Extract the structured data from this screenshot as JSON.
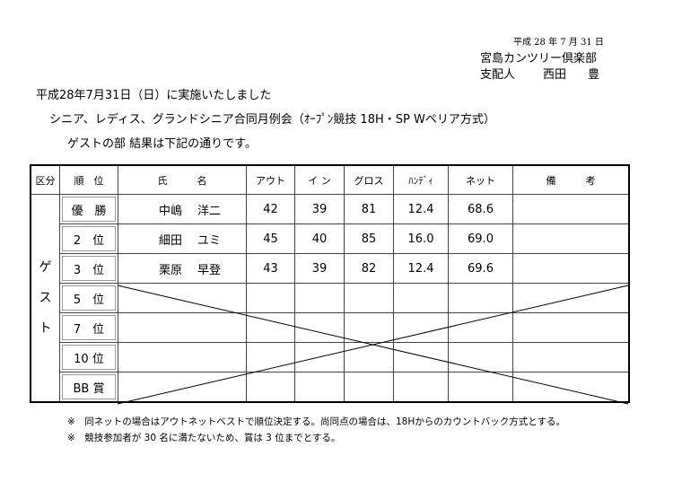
{
  "header": {
    "date": "平成 28 年 7 月 31 日",
    "club": "宮島カンツリー倶楽部",
    "manager_title": "支配人",
    "manager_name_family": "西田",
    "manager_name_given": "豊"
  },
  "intro": {
    "line1": "平成28年7月31日（日）に実施いたしました",
    "line2": "シニア、レディス、グランドシニア合同月例会（ｵｰﾌﾟﾝ競技 18H・SP Wペリア方式）",
    "line3": "ゲストの部  結果は下記の通りです。"
  },
  "table": {
    "columns": [
      "区分",
      "順　位",
      "氏　　　名",
      "アウト",
      "イ ン",
      "グロス",
      "ﾊﾝﾃﾞｨ",
      "ネット",
      "備　　　考"
    ],
    "category": [
      "ゲ",
      "ス",
      "ト"
    ],
    "rows": [
      {
        "rank": "優　勝",
        "family": "中嶋",
        "given": "洋二",
        "out": "42",
        "in": "39",
        "gross": "81",
        "handicap": "12.4",
        "net": "68.6",
        "note": ""
      },
      {
        "rank": "2　位",
        "family": "細田",
        "given": "ユミ",
        "out": "45",
        "in": "40",
        "gross": "85",
        "handicap": "16.0",
        "net": "69.0",
        "note": ""
      },
      {
        "rank": "3　位",
        "family": "栗原",
        "given": "早登",
        "out": "43",
        "in": "39",
        "gross": "82",
        "handicap": "12.4",
        "net": "69.6",
        "note": ""
      },
      {
        "rank": "5　位"
      },
      {
        "rank": "7　位"
      },
      {
        "rank": "10 位"
      },
      {
        "rank": "BB 賞"
      }
    ]
  },
  "notes": [
    "※　同ネットの場合はアウトネットベストで順位決定する。尚同点の場合は、18Hからのカウントバック方式とする。",
    "※　競技参加者が 30 名に満たないため、賞は 3 位までとする。"
  ]
}
